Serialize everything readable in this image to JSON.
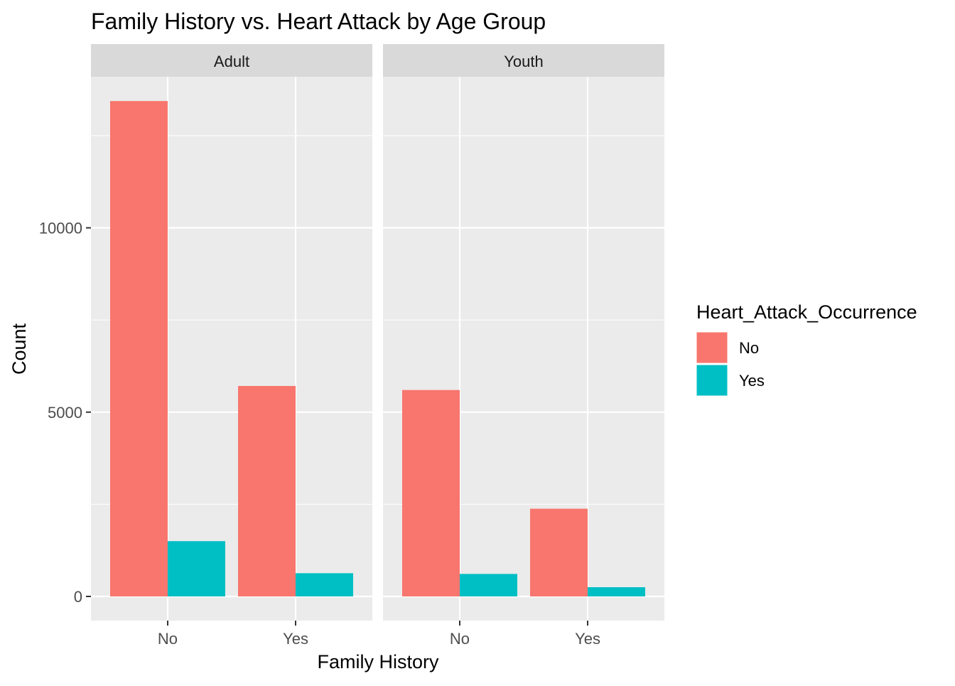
{
  "chart_data": {
    "type": "bar",
    "title": "Family History vs. Heart Attack by Age Group",
    "xlabel": "Family History",
    "ylabel": "Count",
    "ylim": [
      0,
      13900
    ],
    "yticks": [
      0,
      5000,
      10000
    ],
    "tick_labels": [
      "0",
      "5000",
      "10000"
    ],
    "categories": [
      "No",
      "Yes"
    ],
    "grid": true,
    "legend": {
      "title": "Heart_Attack_Occurrence",
      "placement": "right",
      "entries": [
        {
          "label": "No",
          "color": "#F8766D"
        },
        {
          "label": "Yes",
          "color": "#00BFC4"
        }
      ]
    },
    "panels": [
      {
        "facet": "Adult",
        "series": [
          {
            "name": "No",
            "values": [
              13440,
              5710
            ]
          },
          {
            "name": "Yes",
            "values": [
              1500,
              630
            ]
          }
        ]
      },
      {
        "facet": "Youth",
        "series": [
          {
            "name": "No",
            "values": [
              5600,
              2380
            ]
          },
          {
            "name": "Yes",
            "values": [
              610,
              250
            ]
          }
        ]
      }
    ]
  },
  "colors": {
    "panel_bg": "#EBEBEB",
    "strip_bg": "#D9D9D9",
    "grid": "#FFFFFF",
    "text": "#000000",
    "tick_text": "#4D4D4D"
  }
}
